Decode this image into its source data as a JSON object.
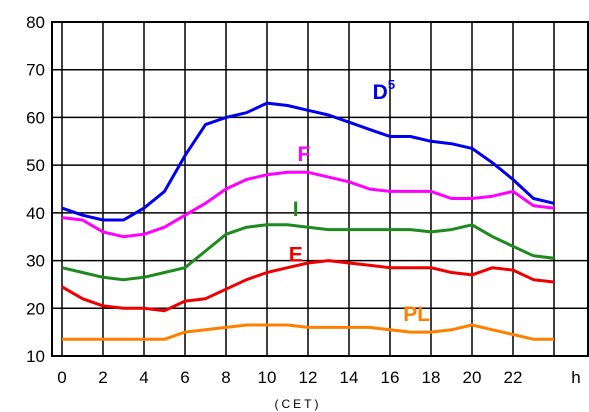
{
  "chart_data": {
    "type": "line",
    "xlabel": "(CET)",
    "ylabel": "",
    "x_unit_label": "h",
    "xlim": [
      0,
      24
    ],
    "ylim": [
      10,
      80
    ],
    "x_ticks": [
      0,
      2,
      4,
      6,
      8,
      10,
      12,
      14,
      16,
      18,
      20,
      22
    ],
    "y_ticks": [
      10,
      20,
      30,
      40,
      50,
      60,
      70,
      80
    ],
    "grid": true,
    "x": [
      0,
      1,
      2,
      3,
      4,
      5,
      6,
      7,
      8,
      9,
      10,
      11,
      12,
      13,
      14,
      15,
      16,
      17,
      18,
      19,
      20,
      21,
      22,
      23,
      24
    ],
    "series": [
      {
        "name": "D",
        "name_sup": "5",
        "color": "#0000ee",
        "label_x": 15.7,
        "label_y": 65.5,
        "values": [
          41,
          39.5,
          38.5,
          38.5,
          41,
          44.5,
          52,
          58.5,
          60,
          61,
          63,
          62.5,
          61.5,
          60.5,
          59,
          57.5,
          56,
          56,
          55,
          54.5,
          53.5,
          50.5,
          47,
          43,
          42
        ]
      },
      {
        "name": "F",
        "color": "#ff00ff",
        "label_x": 11.8,
        "label_y": 52.5,
        "values": [
          39,
          38.5,
          36,
          35,
          35.5,
          37,
          39.5,
          42,
          45,
          47,
          48,
          48.5,
          48.5,
          47.5,
          46.5,
          45,
          44.5,
          44.5,
          44.5,
          43,
          43,
          43.5,
          44.5,
          41.5,
          41
        ]
      },
      {
        "name": "I",
        "color": "#1e8a1e",
        "label_x": 11.4,
        "label_y": 41,
        "values": [
          28.5,
          27.5,
          26.5,
          26,
          26.5,
          27.5,
          28.5,
          32,
          35.5,
          37,
          37.5,
          37.5,
          37,
          36.5,
          36.5,
          36.5,
          36.5,
          36.5,
          36,
          36.5,
          37.5,
          35,
          33,
          31,
          30.5
        ]
      },
      {
        "name": "E",
        "color": "#ee0000",
        "label_x": 11.4,
        "label_y": 31.5,
        "values": [
          24.5,
          22,
          20.5,
          20,
          20,
          19.5,
          21.5,
          22,
          24,
          26,
          27.5,
          28.5,
          29.5,
          30,
          29.5,
          29,
          28.5,
          28.5,
          28.5,
          27.5,
          27,
          28.5,
          28,
          26,
          25.5
        ]
      },
      {
        "name": "PL",
        "color": "#ff7f00",
        "label_x": 17.3,
        "label_y": 19,
        "values": [
          13.5,
          13.5,
          13.5,
          13.5,
          13.5,
          13.5,
          15,
          15.5,
          16,
          16.5,
          16.5,
          16.5,
          16,
          16,
          16,
          16,
          15.5,
          15,
          15,
          15.5,
          16.5,
          15.5,
          14.5,
          13.5,
          13.5
        ]
      }
    ]
  }
}
